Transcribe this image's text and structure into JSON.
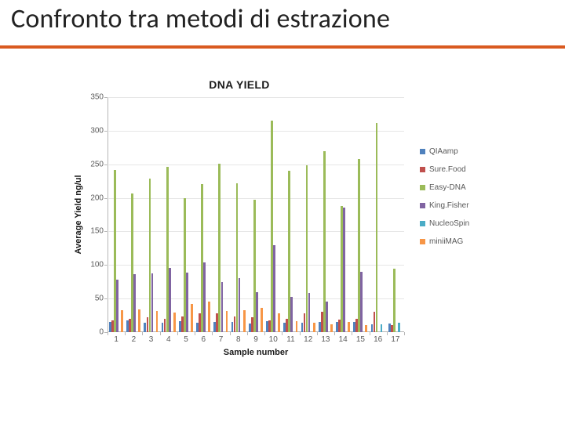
{
  "title": "Confronto tra metodi di estrazione",
  "chart": {
    "type": "bar",
    "title": "DNA YIELD",
    "title_fontsize": 14,
    "title_weight": 700,
    "xlabel": "Sample number",
    "ylabel": "Average Yield  ng/ul",
    "label_fontsize": 11,
    "label_weight": 700,
    "tick_fontsize": 10,
    "background_color": "#ffffff",
    "grid_color": "#e6e6e6",
    "axis_color": "#b7b7b7",
    "text_color": "#595959",
    "ylim": [
      0,
      350
    ],
    "ytick_step": 50,
    "categories": [
      "1",
      "2",
      "3",
      "4",
      "5",
      "6",
      "7",
      "8",
      "9",
      "10",
      "11",
      "12",
      "13",
      "14",
      "15",
      "16",
      "17"
    ],
    "bar_gap_ratio": 0.18,
    "series": [
      {
        "name": "QIAamp",
        "color": "#4f81bd",
        "values": [
          15,
          17,
          14,
          14,
          16,
          14,
          15,
          15,
          13,
          16,
          14,
          14,
          15,
          15,
          15,
          12,
          13
        ]
      },
      {
        "name": "Sure.Food",
        "color": "#c0504d",
        "values": [
          18,
          20,
          22,
          20,
          23,
          28,
          28,
          23,
          22,
          18,
          20,
          28,
          30,
          19,
          20,
          30,
          10
        ]
      },
      {
        "name": "Easy-DNA",
        "color": "#9bbb59",
        "values": [
          242,
          207,
          229,
          246,
          200,
          220,
          251,
          222,
          197,
          315,
          240,
          248,
          269,
          188,
          258,
          312,
          95
        ]
      },
      {
        "name": "King.Fisher",
        "color": "#8064a2",
        "values": [
          78,
          86,
          88,
          96,
          89,
          104,
          75,
          80,
          60,
          130,
          52,
          58,
          45,
          185,
          90,
          0,
          0
        ]
      },
      {
        "name": "NucleoSpin",
        "color": "#4bacc6",
        "values": [
          0,
          0,
          0,
          0,
          0,
          0,
          0,
          0,
          0,
          0,
          0,
          0,
          0,
          0,
          0,
          12,
          14
        ]
      },
      {
        "name": "miniiMAG",
        "color": "#f79646",
        "values": [
          33,
          34,
          31,
          29,
          42,
          46,
          32,
          33,
          36,
          28,
          16,
          14,
          12,
          15,
          10,
          0,
          0
        ]
      }
    ],
    "legend": {
      "position": "right",
      "swatch_size": 7,
      "fontsize": 10,
      "item_spacing": 12
    }
  },
  "colors": {
    "rule": "#d95a20",
    "title": "#222222"
  }
}
